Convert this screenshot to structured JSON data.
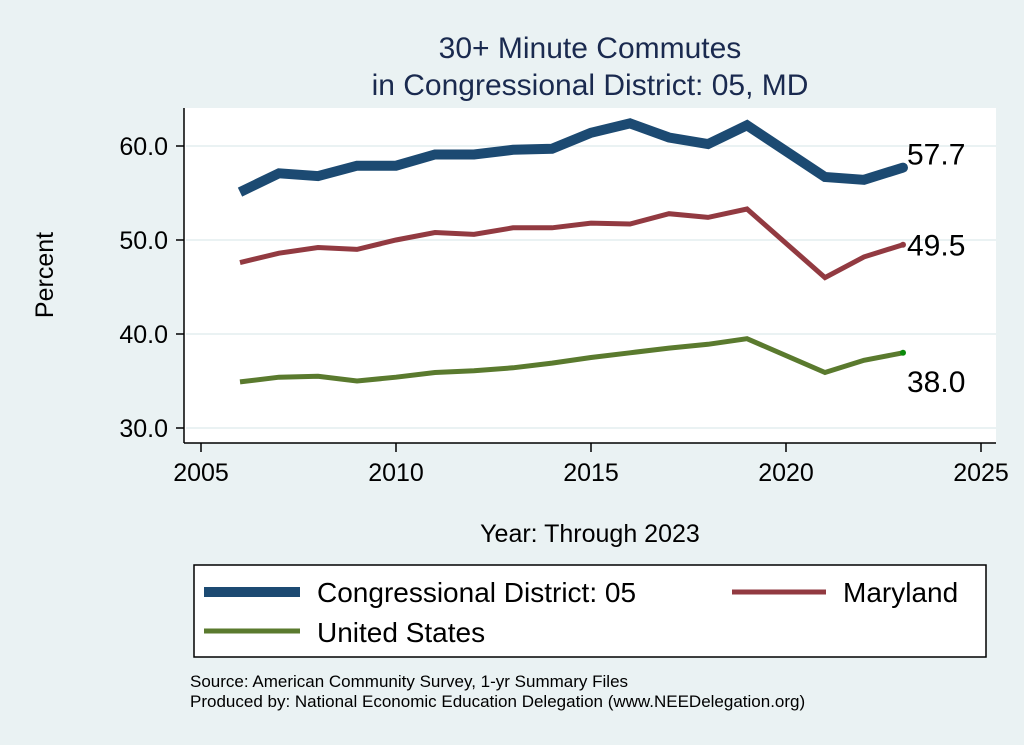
{
  "chart_data": {
    "type": "line",
    "title": [
      "30+ Minute Commutes",
      "in Congressional District:  05, MD"
    ],
    "xlabel": "Year: Through 2023",
    "ylabel": "Percent",
    "xlim": [
      2005,
      2025
    ],
    "ylim": [
      30,
      60
    ],
    "xticks": [
      2005,
      2010,
      2015,
      2020,
      2025
    ],
    "yticks": [
      30,
      40,
      50,
      60
    ],
    "ytick_labels": [
      "30.0",
      "40.0",
      "50.0",
      "60.0"
    ],
    "grid": "horizontal",
    "x": [
      2006,
      2007,
      2008,
      2009,
      2010,
      2011,
      2012,
      2013,
      2014,
      2015,
      2016,
      2017,
      2018,
      2019,
      2021,
      2022,
      2023
    ],
    "series": [
      {
        "name": "Congressional District:  05",
        "color": "#1c4a72",
        "values": [
          55.1,
          57.1,
          56.8,
          57.9,
          57.9,
          59.1,
          59.1,
          59.6,
          59.7,
          61.4,
          62.4,
          60.9,
          60.2,
          62.2,
          56.7,
          56.4,
          57.7
        ],
        "end_label": "57.7"
      },
      {
        "name": "Maryland",
        "color": "#923a41",
        "values": [
          47.6,
          48.6,
          49.2,
          49.0,
          50.0,
          50.8,
          50.6,
          51.3,
          51.3,
          51.8,
          51.7,
          52.8,
          52.4,
          53.3,
          46.0,
          48.2,
          49.5
        ],
        "end_label": "49.5"
      },
      {
        "name": "United States",
        "color": "#5a7a2e",
        "values": [
          34.9,
          35.4,
          35.5,
          35.0,
          35.4,
          35.9,
          36.1,
          36.4,
          36.9,
          37.5,
          38.0,
          38.5,
          38.9,
          39.5,
          35.9,
          37.2,
          38.0
        ],
        "end_label": "38.0",
        "end_marker_color": "#0a8a0a"
      }
    ],
    "legend": {
      "placement": "bottom",
      "entries": [
        "Congressional District:  05",
        "Maryland",
        "United States"
      ]
    },
    "notes": [
      "Source: American Community Survey, 1-yr Summary Files",
      "Produced by: National Economic Education Delegation (www.NEEDelegation.org)"
    ]
  }
}
